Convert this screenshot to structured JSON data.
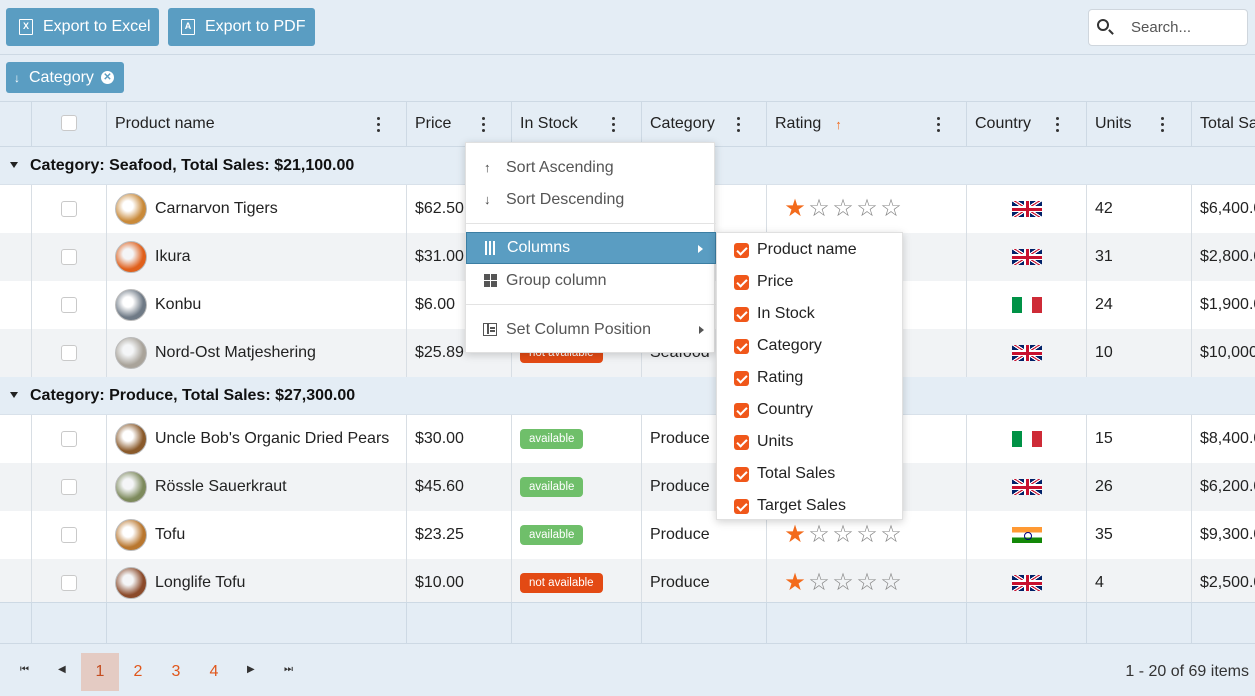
{
  "toolbar": {
    "export_excel": "Export to Excel",
    "export_pdf": "Export to PDF",
    "search_placeholder": "Search..."
  },
  "group_chip": {
    "label": "Category",
    "direction": "descending"
  },
  "columns": [
    {
      "key": "product",
      "label": "Product name"
    },
    {
      "key": "price",
      "label": "Price"
    },
    {
      "key": "stock",
      "label": "In Stock"
    },
    {
      "key": "category",
      "label": "Category"
    },
    {
      "key": "rating",
      "label": "Rating",
      "sorted": "ascending"
    },
    {
      "key": "country",
      "label": "Country"
    },
    {
      "key": "units",
      "label": "Units"
    },
    {
      "key": "total",
      "label": "Total Sa"
    }
  ],
  "groups": [
    {
      "title": "Category: Seafood, Total Sales: $21,100.00",
      "rows": [
        {
          "name": "Carnarvon Tigers",
          "price": "$62.50",
          "stock": "",
          "category": "",
          "rating": 1,
          "flag": "uk",
          "units": "42",
          "total": "$6,400.0",
          "thumb": "#c98a3a"
        },
        {
          "name": "Ikura",
          "price": "$31.00",
          "stock": "",
          "category": "",
          "rating": 0,
          "flag": "uk",
          "units": "31",
          "total": "$2,800.0",
          "thumb": "#e0601c"
        },
        {
          "name": "Konbu",
          "price": "$6.00",
          "stock": "",
          "category": "",
          "rating": 0,
          "flag": "it",
          "units": "24",
          "total": "$1,900.0",
          "thumb": "#6f7a86"
        },
        {
          "name": "Nord-Ost Matjeshering",
          "price": "$25.89",
          "stock": "not available",
          "category": "Seafood",
          "rating": 0,
          "flag": "uk",
          "units": "10",
          "total": "$10,000",
          "thumb": "#a9a39a"
        }
      ]
    },
    {
      "title": "Category: Produce, Total Sales: $27,300.00",
      "rows": [
        {
          "name": "Uncle Bob's Organic Dried Pears",
          "price": "$30.00",
          "stock": "available",
          "category": "Produce",
          "rating": 0,
          "flag": "it",
          "units": "15",
          "total": "$8,400.0",
          "thumb": "#8a5a2b"
        },
        {
          "name": "Rössle Sauerkraut",
          "price": "$45.60",
          "stock": "available",
          "category": "Produce",
          "rating": 0,
          "flag": "uk",
          "units": "26",
          "total": "$6,200.0",
          "thumb": "#7d8a5c"
        },
        {
          "name": "Tofu",
          "price": "$23.25",
          "stock": "available",
          "category": "Produce",
          "rating": 1,
          "flag": "in",
          "units": "35",
          "total": "$9,300.0",
          "thumb": "#b9772f"
        },
        {
          "name": "Longlife Tofu",
          "price": "$10.00",
          "stock": "not available",
          "category": "Produce",
          "rating": 1,
          "flag": "uk",
          "units": "4",
          "total": "$2,500.0",
          "thumb": "#8b4a2a"
        }
      ]
    }
  ],
  "context_menu": {
    "sort_asc": "Sort Ascending",
    "sort_desc": "Sort Descending",
    "columns": "Columns",
    "group_column": "Group column",
    "set_position": "Set Column Position"
  },
  "columns_submenu": [
    {
      "label": "Product name",
      "checked": true
    },
    {
      "label": "Price",
      "checked": true
    },
    {
      "label": "In Stock",
      "checked": true
    },
    {
      "label": "Category",
      "checked": true
    },
    {
      "label": "Rating",
      "checked": true
    },
    {
      "label": "Country",
      "checked": true
    },
    {
      "label": "Units",
      "checked": true
    },
    {
      "label": "Total Sales",
      "checked": true
    },
    {
      "label": "Target Sales",
      "checked": true
    }
  ],
  "pager": {
    "pages": [
      "1",
      "2",
      "3",
      "4"
    ],
    "current": "1",
    "info": "1 - 20 of 69 items"
  },
  "colors": {
    "accent": "#5a9dc2",
    "star": "#f36b1c",
    "available": "#6fbf6a",
    "not_available": "#e34a14",
    "check": "#f0571a"
  }
}
